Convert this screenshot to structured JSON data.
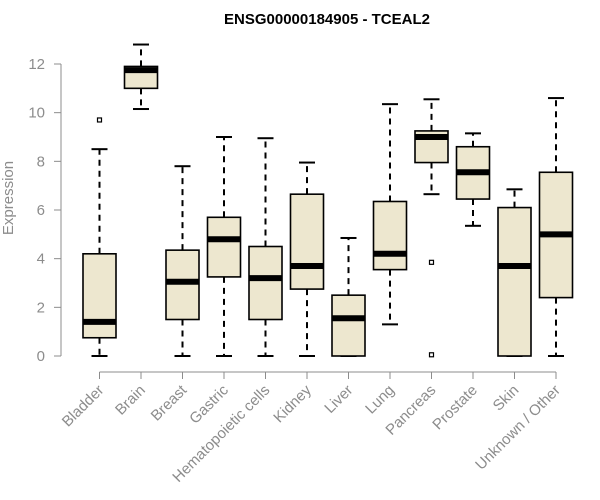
{
  "chart_data": {
    "type": "boxplot",
    "title": "ENSG00000184905 - TCEAL2",
    "xlabel": "",
    "ylabel": "Expression",
    "ylim": [
      0,
      12.9
    ],
    "yticks": [
      0,
      2,
      4,
      6,
      8,
      10,
      12
    ],
    "colors": {
      "box_fill": "#ede7cf",
      "stroke": "#000000",
      "axis": "#8c8c8c"
    },
    "boxes": [
      {
        "category": "Bladder",
        "whisker_low": 0,
        "q1": 0.75,
        "median": 1.4,
        "q3": 4.2,
        "whisker_high": 8.5,
        "outliers": [
          9.7
        ]
      },
      {
        "category": "Brain",
        "whisker_low": 10.15,
        "q1": 11.0,
        "median": 11.75,
        "q3": 11.9,
        "whisker_high": 12.8,
        "outliers": []
      },
      {
        "category": "Breast",
        "whisker_low": 0,
        "q1": 1.5,
        "median": 3.05,
        "q3": 4.35,
        "whisker_high": 7.8,
        "outliers": []
      },
      {
        "category": "Gastric",
        "whisker_low": 0,
        "q1": 3.25,
        "median": 4.8,
        "q3": 5.7,
        "whisker_high": 9.0,
        "outliers": []
      },
      {
        "category": "Hematopoietic cells",
        "whisker_low": 0,
        "q1": 1.5,
        "median": 3.2,
        "q3": 4.5,
        "whisker_high": 8.95,
        "outliers": []
      },
      {
        "category": "Kidney",
        "whisker_low": 0,
        "q1": 2.75,
        "median": 3.7,
        "q3": 6.65,
        "whisker_high": 7.95,
        "outliers": []
      },
      {
        "category": "Liver",
        "whisker_low": 0,
        "q1": 0,
        "median": 1.55,
        "q3": 2.5,
        "whisker_high": 4.85,
        "outliers": []
      },
      {
        "category": "Lung",
        "whisker_low": 1.3,
        "q1": 3.55,
        "median": 4.2,
        "q3": 6.35,
        "whisker_high": 10.35,
        "outliers": []
      },
      {
        "category": "Pancreas",
        "whisker_low": 6.65,
        "q1": 7.95,
        "median": 9.0,
        "q3": 9.25,
        "whisker_high": 10.55,
        "outliers": [
          3.85,
          0.05
        ]
      },
      {
        "category": "Prostate",
        "whisker_low": 5.35,
        "q1": 6.45,
        "median": 7.55,
        "q3": 8.6,
        "whisker_high": 9.15,
        "outliers": []
      },
      {
        "category": "Skin",
        "whisker_low": 0,
        "q1": 0,
        "median": 3.7,
        "q3": 6.1,
        "whisker_high": 6.85,
        "outliers": []
      },
      {
        "category": "Unknown / Other",
        "whisker_low": 0,
        "q1": 2.4,
        "median": 5.0,
        "q3": 7.55,
        "whisker_high": 10.6,
        "outliers": []
      }
    ]
  }
}
